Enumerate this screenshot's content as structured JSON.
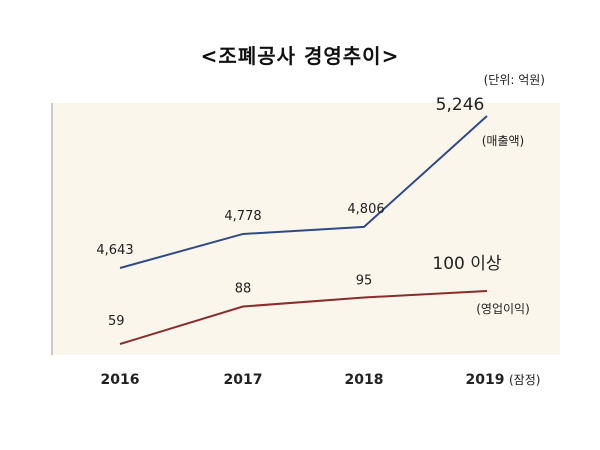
{
  "chart_data": {
    "type": "line",
    "title": "<조폐공사 경영추이>",
    "unit": "(단위: 억원)",
    "categories": [
      "2016",
      "2017",
      "2018",
      "2019"
    ],
    "x_tick_suffix": {
      "2019": "(잠정)"
    },
    "series": [
      {
        "name": "(매출액)",
        "values": [
          4643,
          4778,
          4806,
          5246
        ],
        "labels": [
          "4,643",
          "4,778",
          "4,806",
          "5,246"
        ],
        "color": "#2e4a87"
      },
      {
        "name": "(영업이익)",
        "values": [
          59,
          88,
          95,
          100
        ],
        "labels": [
          "59",
          "88",
          "95",
          "100 이상"
        ],
        "color": "#8b2c2c"
      }
    ],
    "plot_background": "#fbf6ec",
    "grid": false
  }
}
